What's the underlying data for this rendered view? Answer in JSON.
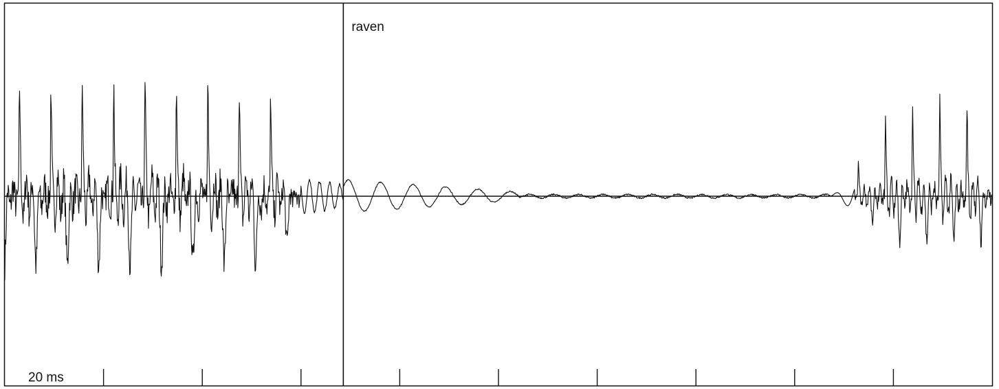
{
  "chart_data": {
    "type": "line",
    "title": "",
    "xlabel": "",
    "ylabel": "",
    "word_label": "raven",
    "scale_label": "20 ms",
    "word_boundary_ms": 48,
    "xlim_ms": [
      0,
      140
    ],
    "ylim": [
      -1,
      1
    ],
    "tick_positions_ms": [
      14,
      28,
      42,
      56,
      70,
      84,
      98,
      112,
      126
    ],
    "grid": false,
    "series": [
      {
        "segments": [
          {
            "t0": 0,
            "t1": 42,
            "kind": "voiced_pulses",
            "amp_peak": 0.62,
            "amp_trough": -0.38,
            "period_ms": 4.45,
            "phase_ms": 2.0,
            "noise": 0.22
          },
          {
            "t0": 42,
            "t1": 48,
            "kind": "ringing",
            "amp": 0.12,
            "freq_hz": 700,
            "decay_to": 0.6
          },
          {
            "t0": 48,
            "t1": 73,
            "kind": "damped_wave",
            "amp": 0.11,
            "period_ms": 4.6,
            "decay_to": 0.25
          },
          {
            "t0": 73,
            "t1": 117,
            "kind": "flat",
            "amp": 0.012
          },
          {
            "t0": 117,
            "t1": 120.5,
            "kind": "rise",
            "amp": 0.09,
            "period_ms": 3.2
          },
          {
            "t0": 120.5,
            "t1": 140,
            "kind": "voiced_pulses",
            "amp_peak": 0.52,
            "amp_trough": -0.22,
            "period_ms": 3.85,
            "phase_ms": 1.6,
            "noise": 0.12,
            "ramp_in_ms": 6
          }
        ]
      }
    ]
  }
}
